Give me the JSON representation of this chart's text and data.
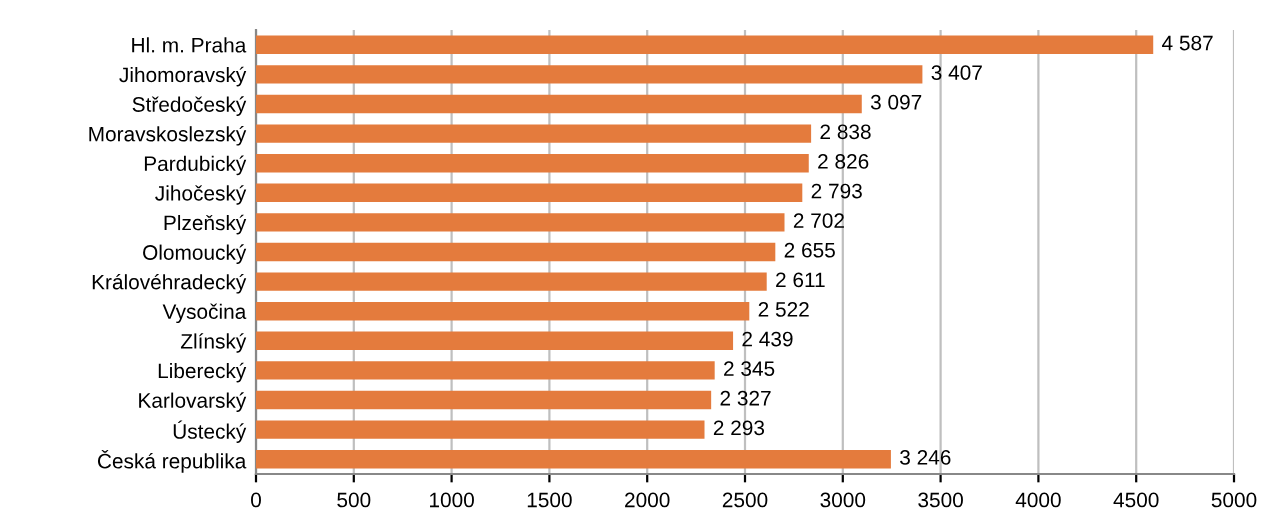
{
  "chart_data": {
    "type": "bar",
    "orientation": "horizontal",
    "categories": [
      "Hl. m. Praha",
      "Jihomoravský",
      "Středočeský",
      "Moravskoslezský",
      "Pardubický",
      "Jihočeský",
      "Plzeňský",
      "Olomoucký",
      "Královéhradecký",
      "Vysočina",
      "Zlínský",
      "Liberecký",
      "Karlovarský",
      "Ústecký",
      "Česká republika"
    ],
    "values": [
      4587,
      3407,
      3097,
      2838,
      2826,
      2793,
      2702,
      2655,
      2611,
      2522,
      2439,
      2345,
      2327,
      2293,
      3246
    ],
    "value_labels": [
      "4 587",
      "3 407",
      "3 097",
      "2 838",
      "2 826",
      "2 793",
      "2 702",
      "2 655",
      "2 611",
      "2 522",
      "2 439",
      "2 345",
      "2 327",
      "2 293",
      "3 246"
    ],
    "color": "#e47b3d",
    "xlim": [
      0,
      5000
    ],
    "xticks": [
      0,
      500,
      1000,
      1500,
      2000,
      2500,
      3000,
      3500,
      4000,
      4500,
      5000
    ],
    "grid": "x",
    "legend": false
  }
}
